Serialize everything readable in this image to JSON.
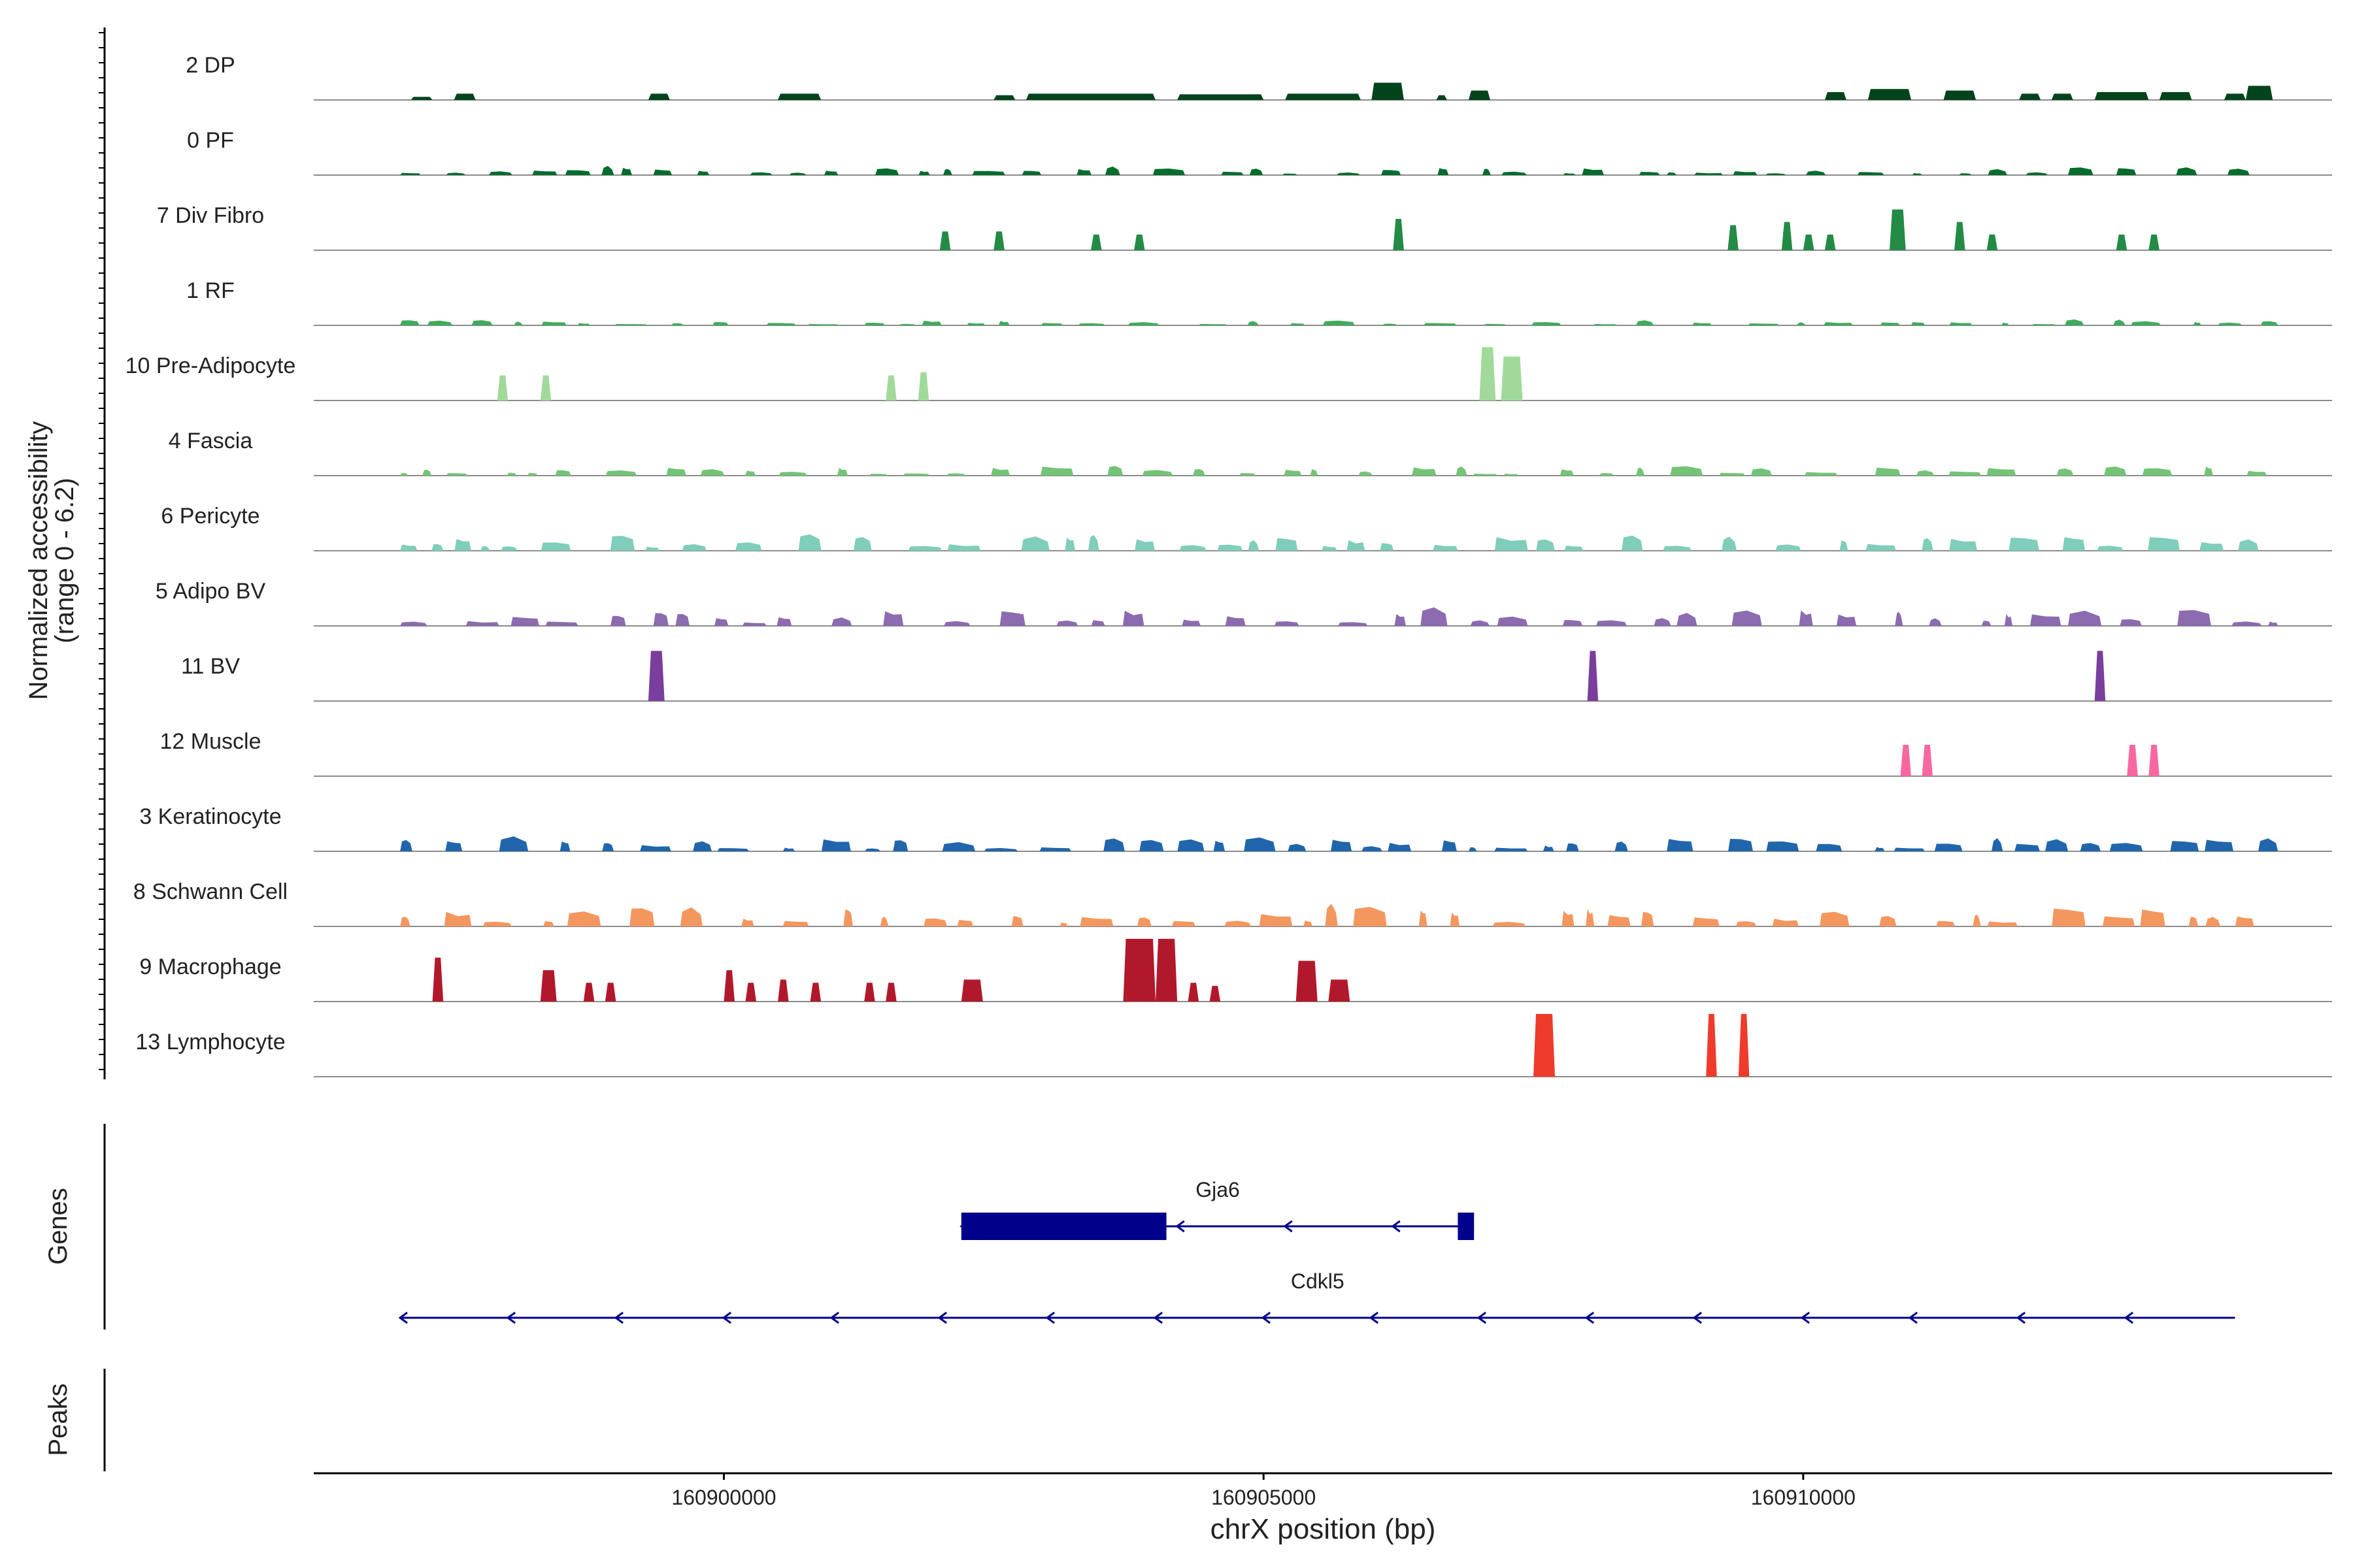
{
  "chart_data": {
    "type": "area",
    "y_axis": {
      "label_line1": "Normalized accessibility",
      "label_line2": "(range 0 - 6.2)",
      "range": [
        0,
        6.2
      ]
    },
    "x_axis": {
      "label": "chrX position (bp)",
      "range": [
        160896200,
        160914900
      ],
      "ticks": [
        {
          "value": 160900000,
          "label": "160900000"
        },
        {
          "value": 160905000,
          "label": "160905000"
        },
        {
          "value": 160910000,
          "label": "160910000"
        }
      ]
    },
    "panel_labels": {
      "genes": "Genes",
      "peaks": "Peaks"
    },
    "tracks": [
      {
        "name": "2 DP",
        "color": "#00441b",
        "kind": "broad",
        "regions": [
          [
            160897100,
            160897300,
            0.1
          ],
          [
            160897500,
            160897700,
            0.2
          ],
          [
            160899300,
            160899500,
            0.2
          ],
          [
            160900500,
            160900900,
            0.2
          ],
          [
            160902500,
            160902700,
            0.15
          ],
          [
            160902800,
            160904000,
            0.2
          ],
          [
            160904200,
            160905000,
            0.18
          ],
          [
            160905200,
            160905900,
            0.2
          ],
          [
            160906000,
            160906300,
            0.55
          ],
          [
            160906600,
            160906700,
            0.15
          ],
          [
            160906900,
            160907100,
            0.3
          ],
          [
            160910200,
            160910400,
            0.25
          ],
          [
            160910600,
            160911000,
            0.35
          ],
          [
            160911300,
            160911600,
            0.3
          ],
          [
            160912000,
            160912200,
            0.2
          ],
          [
            160912300,
            160912500,
            0.2
          ],
          [
            160912700,
            160913200,
            0.25
          ],
          [
            160913300,
            160913600,
            0.25
          ],
          [
            160913900,
            160914100,
            0.2
          ],
          [
            160914100,
            160914350,
            0.45
          ]
        ]
      },
      {
        "name": "0 PF",
        "color": "#006d2c",
        "kind": "broad",
        "regions": [
          [
            160897000,
            160914400,
            0.12
          ]
        ]
      },
      {
        "name": "7 Div Fibro",
        "color": "#238b45",
        "kind": "peaks",
        "regions": [
          [
            160902000,
            160902100,
            0.6
          ],
          [
            160902500,
            160902600,
            0.6
          ],
          [
            160903400,
            160903500,
            0.5
          ],
          [
            160903800,
            160903900,
            0.5
          ],
          [
            160906200,
            160906300,
            1.0
          ],
          [
            160909300,
            160909400,
            0.8
          ],
          [
            160909800,
            160909900,
            0.9
          ],
          [
            160910000,
            160910100,
            0.5
          ],
          [
            160910200,
            160910300,
            0.5
          ],
          [
            160910800,
            160910950,
            1.3
          ],
          [
            160911400,
            160911500,
            0.9
          ],
          [
            160911700,
            160911800,
            0.5
          ],
          [
            160912900,
            160913000,
            0.5
          ],
          [
            160913200,
            160913300,
            0.5
          ]
        ]
      },
      {
        "name": "1 RF",
        "color": "#41ab5d",
        "kind": "broad",
        "regions": [
          [
            160897000,
            160914400,
            0.08
          ]
        ]
      },
      {
        "name": "10 Pre-Adipocyte",
        "color": "#a1d99b",
        "kind": "peaks",
        "regions": [
          [
            160897900,
            160898000,
            0.8
          ],
          [
            160898300,
            160898400,
            0.8
          ],
          [
            160901500,
            160901600,
            0.8
          ],
          [
            160901800,
            160901900,
            0.9
          ],
          [
            160907000,
            160907150,
            1.7
          ],
          [
            160907200,
            160907400,
            1.4
          ]
        ]
      },
      {
        "name": "4 Fascia",
        "color": "#74c476",
        "kind": "broad",
        "regions": [
          [
            160897000,
            160914400,
            0.15
          ]
        ]
      },
      {
        "name": "6 Pericyte",
        "color": "#7fcdbb",
        "kind": "broad",
        "regions": [
          [
            160897000,
            160914400,
            0.25
          ]
        ]
      },
      {
        "name": "5 Adipo BV",
        "color": "#8c6bb1",
        "kind": "broad",
        "regions": [
          [
            160897000,
            160914400,
            0.25
          ]
        ]
      },
      {
        "name": "11 BV",
        "color": "#7a3e9d",
        "kind": "peaks",
        "regions": [
          [
            160899300,
            160899450,
            1.6
          ],
          [
            160908000,
            160908100,
            1.6
          ],
          [
            160912700,
            160912800,
            1.6
          ]
        ]
      },
      {
        "name": "12 Muscle",
        "color": "#f768a1",
        "kind": "peaks",
        "regions": [
          [
            160910900,
            160911000,
            1.0
          ],
          [
            160911100,
            160911200,
            1.0
          ],
          [
            160913000,
            160913100,
            1.0
          ],
          [
            160913200,
            160913300,
            1.0
          ]
        ]
      },
      {
        "name": "3 Keratinocyte",
        "color": "#2166ac",
        "kind": "broad",
        "regions": [
          [
            160897000,
            160914400,
            0.2
          ]
        ]
      },
      {
        "name": "8 Schwann Cell",
        "color": "#f4975f",
        "kind": "broad",
        "regions": [
          [
            160897000,
            160914400,
            0.3
          ]
        ]
      },
      {
        "name": "9 Macrophage",
        "color": "#b2182b",
        "kind": "peaks",
        "regions": [
          [
            160897300,
            160897400,
            1.4
          ],
          [
            160898300,
            160898450,
            1.0
          ],
          [
            160898700,
            160898800,
            0.6
          ],
          [
            160898900,
            160899000,
            0.6
          ],
          [
            160900000,
            160900100,
            1.0
          ],
          [
            160900200,
            160900300,
            0.6
          ],
          [
            160900500,
            160900600,
            0.7
          ],
          [
            160900800,
            160900900,
            0.6
          ],
          [
            160901300,
            160901400,
            0.6
          ],
          [
            160901500,
            160901600,
            0.6
          ],
          [
            160902200,
            160902400,
            0.7
          ],
          [
            160903700,
            160904000,
            2.0
          ],
          [
            160904000,
            160904200,
            2.0
          ],
          [
            160904300,
            160904400,
            0.6
          ],
          [
            160904500,
            160904600,
            0.5
          ],
          [
            160905300,
            160905500,
            1.3
          ],
          [
            160905600,
            160905800,
            0.7
          ]
        ]
      },
      {
        "name": "13 Lymphocyte",
        "color": "#ef3b2c",
        "kind": "peaks",
        "regions": [
          [
            160907500,
            160907700,
            2.0
          ],
          [
            160909100,
            160909200,
            2.0
          ],
          [
            160909400,
            160909500,
            2.0
          ]
        ]
      }
    ],
    "genes": [
      {
        "name": "Gja6",
        "start": 160902200,
        "end": 160906950,
        "strand": "-",
        "exons": [
          [
            160902200,
            160904100
          ],
          [
            160906800,
            160906950
          ]
        ]
      },
      {
        "name": "Cdkl5",
        "start": 160897000,
        "end": 160914000,
        "strand": "-",
        "exons": []
      }
    ]
  }
}
